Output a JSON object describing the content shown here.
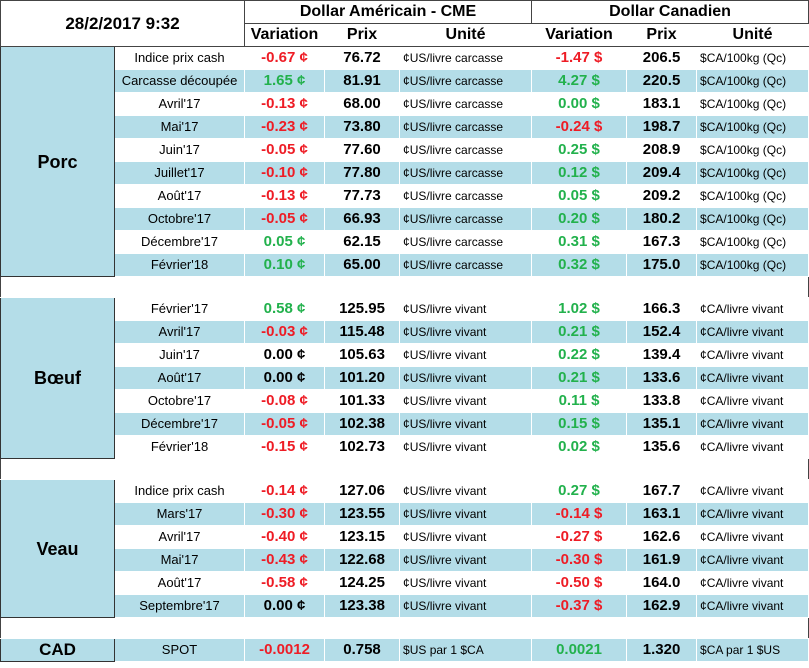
{
  "header": {
    "datetime": "28/2/2017 9:32",
    "usd_title": "Dollar Américain - CME",
    "cad_title": "Dollar Canadien",
    "variation": "Variation",
    "prix": "Prix",
    "unite": "Unité"
  },
  "groups": [
    {
      "name": "Porc",
      "rows": [
        {
          "label": "Indice prix cash",
          "us_var": "-0.67 ¢",
          "us_sign": "neg",
          "us_prix": "76.72",
          "us_unit": "¢US/livre carcasse",
          "ca_var": "-1.47 $",
          "ca_sign": "neg",
          "ca_prix": "206.5",
          "ca_unit": "$CA/100kg (Qc)"
        },
        {
          "label": "Carcasse découpée",
          "us_var": "1.65 ¢",
          "us_sign": "pos",
          "us_prix": "81.91",
          "us_unit": "¢US/livre carcasse",
          "ca_var": "4.27 $",
          "ca_sign": "pos",
          "ca_prix": "220.5",
          "ca_unit": "$CA/100kg (Qc)"
        },
        {
          "label": "Avril'17",
          "us_var": "-0.13 ¢",
          "us_sign": "neg",
          "us_prix": "68.00",
          "us_unit": "¢US/livre carcasse",
          "ca_var": "0.00 $",
          "ca_sign": "pos",
          "ca_prix": "183.1",
          "ca_unit": "$CA/100kg (Qc)"
        },
        {
          "label": "Mai'17",
          "us_var": "-0.23 ¢",
          "us_sign": "neg",
          "us_prix": "73.80",
          "us_unit": "¢US/livre carcasse",
          "ca_var": "-0.24 $",
          "ca_sign": "neg",
          "ca_prix": "198.7",
          "ca_unit": "$CA/100kg (Qc)"
        },
        {
          "label": "Juin'17",
          "us_var": "-0.05 ¢",
          "us_sign": "neg",
          "us_prix": "77.60",
          "us_unit": "¢US/livre carcasse",
          "ca_var": "0.25 $",
          "ca_sign": "pos",
          "ca_prix": "208.9",
          "ca_unit": "$CA/100kg (Qc)"
        },
        {
          "label": "Juillet'17",
          "us_var": "-0.10 ¢",
          "us_sign": "neg",
          "us_prix": "77.80",
          "us_unit": "¢US/livre carcasse",
          "ca_var": "0.12 $",
          "ca_sign": "pos",
          "ca_prix": "209.4",
          "ca_unit": "$CA/100kg (Qc)"
        },
        {
          "label": "Août'17",
          "us_var": "-0.13 ¢",
          "us_sign": "neg",
          "us_prix": "77.73",
          "us_unit": "¢US/livre carcasse",
          "ca_var": "0.05 $",
          "ca_sign": "pos",
          "ca_prix": "209.2",
          "ca_unit": "$CA/100kg (Qc)"
        },
        {
          "label": "Octobre'17",
          "us_var": "-0.05 ¢",
          "us_sign": "neg",
          "us_prix": "66.93",
          "us_unit": "¢US/livre carcasse",
          "ca_var": "0.20 $",
          "ca_sign": "pos",
          "ca_prix": "180.2",
          "ca_unit": "$CA/100kg (Qc)"
        },
        {
          "label": "Décembre'17",
          "us_var": "0.05 ¢",
          "us_sign": "pos",
          "us_prix": "62.15",
          "us_unit": "¢US/livre carcasse",
          "ca_var": "0.31 $",
          "ca_sign": "pos",
          "ca_prix": "167.3",
          "ca_unit": "$CA/100kg (Qc)"
        },
        {
          "label": "Février'18",
          "us_var": "0.10 ¢",
          "us_sign": "pos",
          "us_prix": "65.00",
          "us_unit": "¢US/livre carcasse",
          "ca_var": "0.32 $",
          "ca_sign": "pos",
          "ca_prix": "175.0",
          "ca_unit": "$CA/100kg (Qc)"
        }
      ]
    },
    {
      "name": "Bœuf",
      "rows": [
        {
          "label": "Février'17",
          "us_var": "0.58 ¢",
          "us_sign": "pos",
          "us_prix": "125.95",
          "us_unit": "¢US/livre vivant",
          "ca_var": "1.02 $",
          "ca_sign": "pos",
          "ca_prix": "166.3",
          "ca_unit": "¢CA/livre vivant"
        },
        {
          "label": "Avril'17",
          "us_var": "-0.03 ¢",
          "us_sign": "neg",
          "us_prix": "115.48",
          "us_unit": "¢US/livre vivant",
          "ca_var": "0.21 $",
          "ca_sign": "pos",
          "ca_prix": "152.4",
          "ca_unit": "¢CA/livre vivant"
        },
        {
          "label": "Juin'17",
          "us_var": "0.00 ¢",
          "us_sign": "neu",
          "us_prix": "105.63",
          "us_unit": "¢US/livre vivant",
          "ca_var": "0.22 $",
          "ca_sign": "pos",
          "ca_prix": "139.4",
          "ca_unit": "¢CA/livre vivant"
        },
        {
          "label": "Août'17",
          "us_var": "0.00 ¢",
          "us_sign": "neu",
          "us_prix": "101.20",
          "us_unit": "¢US/livre vivant",
          "ca_var": "0.21 $",
          "ca_sign": "pos",
          "ca_prix": "133.6",
          "ca_unit": "¢CA/livre vivant"
        },
        {
          "label": "Octobre'17",
          "us_var": "-0.08 ¢",
          "us_sign": "neg",
          "us_prix": "101.33",
          "us_unit": "¢US/livre vivant",
          "ca_var": "0.11 $",
          "ca_sign": "pos",
          "ca_prix": "133.8",
          "ca_unit": "¢CA/livre vivant"
        },
        {
          "label": "Décembre'17",
          "us_var": "-0.05 ¢",
          "us_sign": "neg",
          "us_prix": "102.38",
          "us_unit": "¢US/livre vivant",
          "ca_var": "0.15 $",
          "ca_sign": "pos",
          "ca_prix": "135.1",
          "ca_unit": "¢CA/livre vivant"
        },
        {
          "label": "Février'18",
          "us_var": "-0.15 ¢",
          "us_sign": "neg",
          "us_prix": "102.73",
          "us_unit": "¢US/livre vivant",
          "ca_var": "0.02 $",
          "ca_sign": "pos",
          "ca_prix": "135.6",
          "ca_unit": "¢CA/livre vivant"
        }
      ]
    },
    {
      "name": "Veau",
      "rows": [
        {
          "label": "Indice prix cash",
          "us_var": "-0.14 ¢",
          "us_sign": "neg",
          "us_prix": "127.06",
          "us_unit": "¢US/livre vivant",
          "ca_var": "0.27 $",
          "ca_sign": "pos",
          "ca_prix": "167.7",
          "ca_unit": "¢CA/livre vivant"
        },
        {
          "label": "Mars'17",
          "us_var": "-0.30 ¢",
          "us_sign": "neg",
          "us_prix": "123.55",
          "us_unit": "¢US/livre vivant",
          "ca_var": "-0.14 $",
          "ca_sign": "neg",
          "ca_prix": "163.1",
          "ca_unit": "¢CA/livre vivant"
        },
        {
          "label": "Avril'17",
          "us_var": "-0.40 ¢",
          "us_sign": "neg",
          "us_prix": "123.15",
          "us_unit": "¢US/livre vivant",
          "ca_var": "-0.27 $",
          "ca_sign": "neg",
          "ca_prix": "162.6",
          "ca_unit": "¢CA/livre vivant"
        },
        {
          "label": "Mai'17",
          "us_var": "-0.43 ¢",
          "us_sign": "neg",
          "us_prix": "122.68",
          "us_unit": "¢US/livre vivant",
          "ca_var": "-0.30 $",
          "ca_sign": "neg",
          "ca_prix": "161.9",
          "ca_unit": "¢CA/livre vivant"
        },
        {
          "label": "Août'17",
          "us_var": "-0.58 ¢",
          "us_sign": "neg",
          "us_prix": "124.25",
          "us_unit": "¢US/livre vivant",
          "ca_var": "-0.50 $",
          "ca_sign": "neg",
          "ca_prix": "164.0",
          "ca_unit": "¢CA/livre vivant"
        },
        {
          "label": "Septembre'17",
          "us_var": "0.00 ¢",
          "us_sign": "neu",
          "us_prix": "123.38",
          "us_unit": "¢US/livre vivant",
          "ca_var": "-0.37 $",
          "ca_sign": "neg",
          "ca_prix": "162.9",
          "ca_unit": "¢CA/livre vivant"
        }
      ]
    }
  ],
  "cad": {
    "name": "CAD",
    "label": "SPOT",
    "us_var": "-0.0012",
    "us_sign": "neg",
    "us_prix": "0.758",
    "us_unit": "$US par 1 $CA",
    "ca_var": "0.0021",
    "ca_sign": "pos",
    "ca_prix": "1.320",
    "ca_unit": "$CA par 1 $US"
  },
  "colors": {
    "row_alt": "#b4dde8",
    "negative": "#ee1c25",
    "positive": "#22b14c"
  }
}
